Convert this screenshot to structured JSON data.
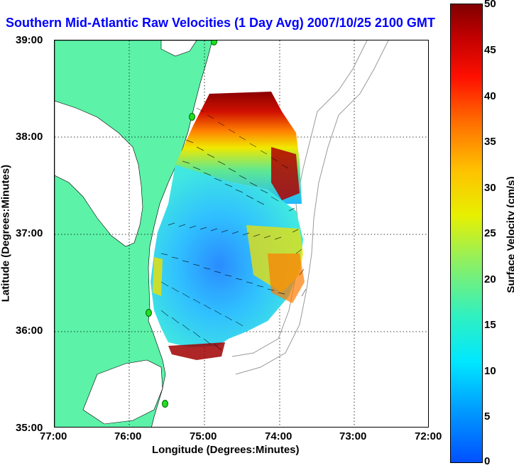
{
  "title": "Southern Mid-Atlantic Raw Velocities (1 Day Avg) 2007/10/25 2100 GMT",
  "axes": {
    "xlabel": "Longitude (Degrees:Minutes)",
    "ylabel": "Latitude (Degrees:Minutes)",
    "xticks": [
      "77:00",
      "76:00",
      "75:00",
      "74:00",
      "73:00",
      "72:00"
    ],
    "yticks": [
      "39:00",
      "38:00",
      "37:00",
      "36:00",
      "35:00"
    ]
  },
  "colorbar": {
    "label": "Surface Velocity (cm/s)",
    "ticks": [
      "50",
      "45",
      "40",
      "35",
      "30",
      "25",
      "20",
      "15",
      "10",
      "5",
      "0"
    ],
    "range": [
      0,
      50
    ],
    "colors": [
      "#0050ff",
      "#00e8ff",
      "#90f060",
      "#e8f000",
      "#ff7000",
      "#ff1000",
      "#800000"
    ]
  },
  "map": {
    "land_color": "#5cf2a8",
    "water_color": "#ffffff",
    "station_color": "#22dd22",
    "grid": true
  }
}
